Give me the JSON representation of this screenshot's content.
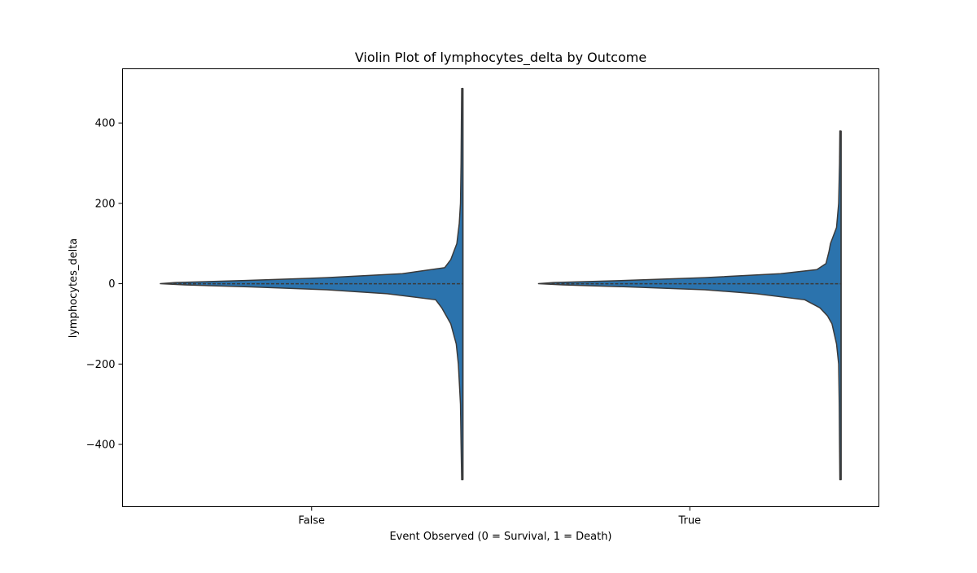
{
  "chart_data": {
    "type": "violin",
    "title": "Violin Plot of lymphocytes_delta by Outcome",
    "xlabel": "Event Observed (0 = Survival, 1 = Death)",
    "ylabel": "lymphocytes_delta",
    "categories": [
      "False",
      "True"
    ],
    "ylim": [
      -555,
      535
    ],
    "yticks": [
      -400,
      -200,
      0,
      200,
      400
    ],
    "grid": false,
    "colors": {
      "fill": "#2b73ad",
      "edge": "#3a3a3a",
      "inner": "#3a3a3a"
    },
    "violins": [
      {
        "category": "False",
        "min": -488,
        "max": 486,
        "median": 0,
        "q1": -1,
        "q3": 1,
        "profile": [
          [
            -488,
            0.004
          ],
          [
            -400,
            0.006
          ],
          [
            -300,
            0.008
          ],
          [
            -200,
            0.015
          ],
          [
            -150,
            0.022
          ],
          [
            -100,
            0.04
          ],
          [
            -60,
            0.07
          ],
          [
            -40,
            0.09
          ],
          [
            -25,
            0.25
          ],
          [
            -15,
            0.45
          ],
          [
            -8,
            0.7
          ],
          [
            -3,
            0.92
          ],
          [
            0,
            1.0
          ],
          [
            3,
            0.95
          ],
          [
            8,
            0.72
          ],
          [
            15,
            0.45
          ],
          [
            25,
            0.2
          ],
          [
            40,
            0.06
          ],
          [
            60,
            0.04
          ],
          [
            100,
            0.02
          ],
          [
            150,
            0.012
          ],
          [
            200,
            0.008
          ],
          [
            300,
            0.006
          ],
          [
            400,
            0.005
          ],
          [
            486,
            0.004
          ]
        ]
      },
      {
        "category": "True",
        "min": -488,
        "max": 380,
        "median": 0,
        "q1": -1,
        "q3": 1,
        "profile": [
          [
            -488,
            0.004
          ],
          [
            -400,
            0.005
          ],
          [
            -300,
            0.006
          ],
          [
            -200,
            0.008
          ],
          [
            -150,
            0.015
          ],
          [
            -100,
            0.03
          ],
          [
            -80,
            0.045
          ],
          [
            -60,
            0.07
          ],
          [
            -40,
            0.12
          ],
          [
            -25,
            0.28
          ],
          [
            -15,
            0.45
          ],
          [
            -8,
            0.7
          ],
          [
            -3,
            0.92
          ],
          [
            0,
            1.0
          ],
          [
            3,
            0.95
          ],
          [
            8,
            0.72
          ],
          [
            15,
            0.45
          ],
          [
            25,
            0.2
          ],
          [
            35,
            0.08
          ],
          [
            50,
            0.05
          ],
          [
            80,
            0.04
          ],
          [
            100,
            0.035
          ],
          [
            140,
            0.015
          ],
          [
            200,
            0.008
          ],
          [
            300,
            0.005
          ],
          [
            380,
            0.004
          ]
        ]
      }
    ]
  }
}
